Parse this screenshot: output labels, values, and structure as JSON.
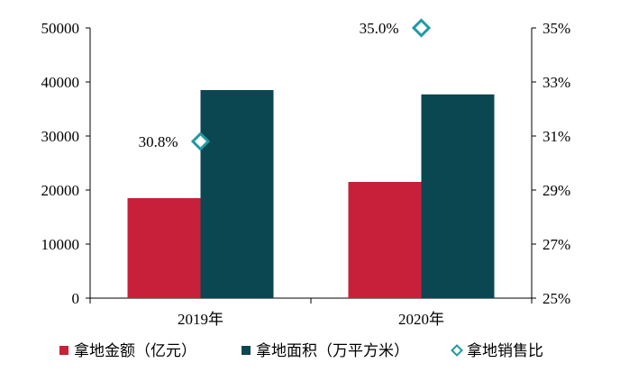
{
  "chart_data": {
    "type": "bar",
    "categories": [
      "2019年",
      "2020年"
    ],
    "series": [
      {
        "name": "拿地金额（亿元）",
        "values": [
          18500,
          21500
        ],
        "axis": "left",
        "color": "#c8203a",
        "kind": "bar"
      },
      {
        "name": "拿地面积（万平方米）",
        "values": [
          38500,
          37700
        ],
        "axis": "left",
        "color": "#0b4750",
        "kind": "bar"
      },
      {
        "name": "拿地销售比",
        "values": [
          30.8,
          35.0
        ],
        "axis": "right",
        "color": "#1f9aa3",
        "kind": "scatter",
        "marker": "diamond-open"
      }
    ],
    "data_labels": [
      "30.8%",
      "35.0%"
    ],
    "y_left": {
      "ylim": [
        0,
        50000
      ],
      "ticks": [
        0,
        10000,
        20000,
        30000,
        40000,
        50000
      ]
    },
    "y_right": {
      "ylim": [
        25,
        35
      ],
      "ticks": [
        "25%",
        "27%",
        "29%",
        "31%",
        "33%",
        "35%"
      ]
    },
    "legend_placement": "bottom",
    "grid": false
  }
}
